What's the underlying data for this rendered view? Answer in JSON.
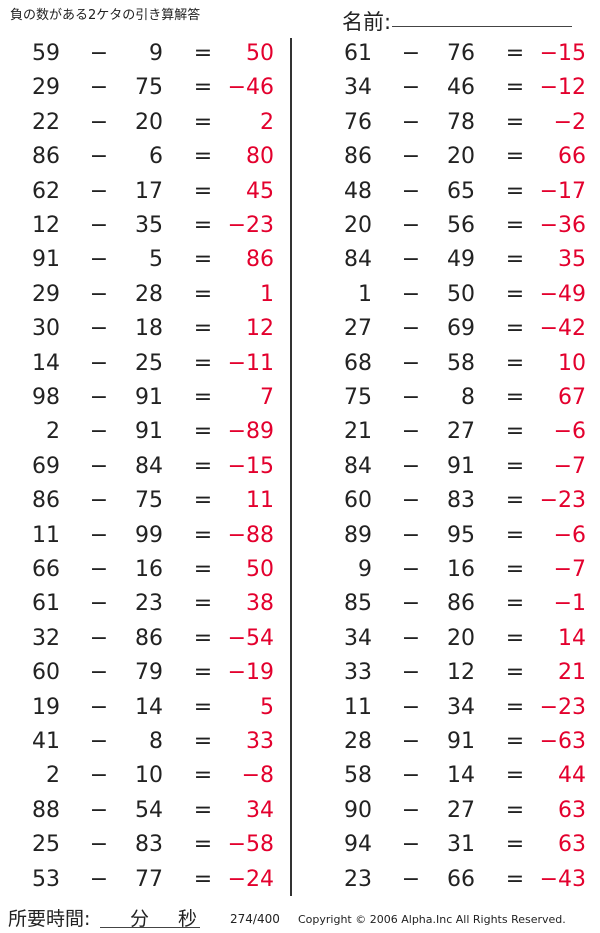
{
  "header": {
    "title": "負の数がある2ケタの引き算解答",
    "name_label": "名前:"
  },
  "operator": "−",
  "equals": "=",
  "colors": {
    "answer": "#e3002d",
    "text": "#222222"
  },
  "left_problems": [
    [
      "59",
      "9",
      "50"
    ],
    [
      "29",
      "75",
      "−46"
    ],
    [
      "22",
      "20",
      "2"
    ],
    [
      "86",
      "6",
      "80"
    ],
    [
      "62",
      "17",
      "45"
    ],
    [
      "12",
      "35",
      "−23"
    ],
    [
      "91",
      "5",
      "86"
    ],
    [
      "29",
      "28",
      "1"
    ],
    [
      "30",
      "18",
      "12"
    ],
    [
      "14",
      "25",
      "−11"
    ],
    [
      "98",
      "91",
      "7"
    ],
    [
      "2",
      "91",
      "−89"
    ],
    [
      "69",
      "84",
      "−15"
    ],
    [
      "86",
      "75",
      "11"
    ],
    [
      "11",
      "99",
      "−88"
    ],
    [
      "66",
      "16",
      "50"
    ],
    [
      "61",
      "23",
      "38"
    ],
    [
      "32",
      "86",
      "−54"
    ],
    [
      "60",
      "79",
      "−19"
    ],
    [
      "19",
      "14",
      "5"
    ],
    [
      "41",
      "8",
      "33"
    ],
    [
      "2",
      "10",
      "−8"
    ],
    [
      "88",
      "54",
      "34"
    ],
    [
      "25",
      "83",
      "−58"
    ],
    [
      "53",
      "77",
      "−24"
    ]
  ],
  "right_problems": [
    [
      "61",
      "76",
      "−15"
    ],
    [
      "34",
      "46",
      "−12"
    ],
    [
      "76",
      "78",
      "−2"
    ],
    [
      "86",
      "20",
      "66"
    ],
    [
      "48",
      "65",
      "−17"
    ],
    [
      "20",
      "56",
      "−36"
    ],
    [
      "84",
      "49",
      "35"
    ],
    [
      "1",
      "50",
      "−49"
    ],
    [
      "27",
      "69",
      "−42"
    ],
    [
      "68",
      "58",
      "10"
    ],
    [
      "75",
      "8",
      "67"
    ],
    [
      "21",
      "27",
      "−6"
    ],
    [
      "84",
      "91",
      "−7"
    ],
    [
      "60",
      "83",
      "−23"
    ],
    [
      "89",
      "95",
      "−6"
    ],
    [
      "9",
      "16",
      "−7"
    ],
    [
      "85",
      "86",
      "−1"
    ],
    [
      "34",
      "20",
      "14"
    ],
    [
      "33",
      "12",
      "21"
    ],
    [
      "11",
      "34",
      "−23"
    ],
    [
      "28",
      "91",
      "−63"
    ],
    [
      "58",
      "14",
      "44"
    ],
    [
      "90",
      "27",
      "63"
    ],
    [
      "94",
      "31",
      "63"
    ],
    [
      "23",
      "66",
      "−43"
    ]
  ],
  "footer": {
    "time_label": "所要時間:",
    "minutes_label": "分",
    "seconds_label": "秒",
    "page": "274/400",
    "copyright": "Copyright © 2006 Alpha.Inc All Rights Reserved."
  }
}
